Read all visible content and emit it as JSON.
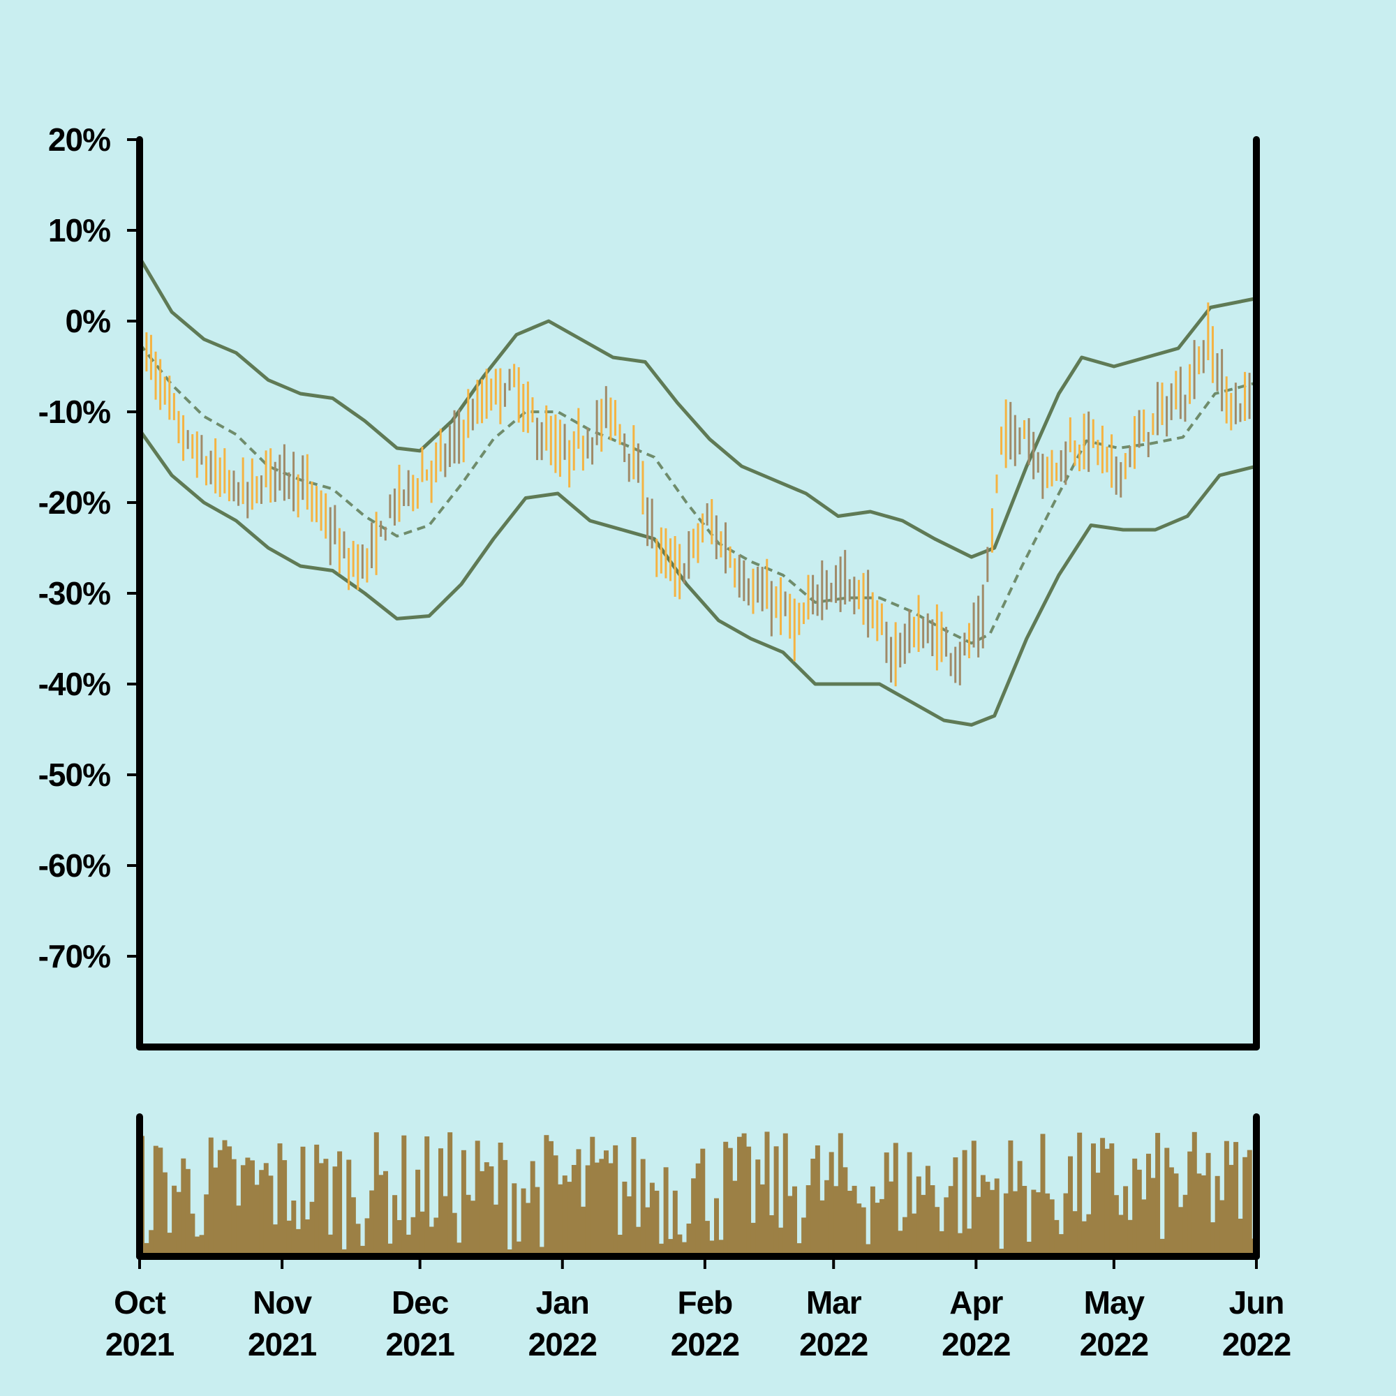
{
  "chart_data": {
    "type": "ohlc",
    "title": "",
    "xlabel": "",
    "ylabel": "",
    "ylim": [
      -80,
      20
    ],
    "y_ticks": [
      20,
      10,
      0,
      -10,
      -20,
      -30,
      -40,
      -50,
      -60,
      -70
    ],
    "y_tick_labels": [
      "20%",
      "10%",
      "0%",
      "-10%",
      "-20%",
      "-30%",
      "-40%",
      "-50%",
      "-60%",
      "-70%"
    ],
    "x_range": [
      "2021-10-01",
      "2022-06-01"
    ],
    "x_ticks": [
      "2021-10-01",
      "2021-11-01",
      "2021-12-01",
      "2022-01-01",
      "2022-02-01",
      "2022-03-01",
      "2022-04-01",
      "2022-05-01",
      "2022-06-01"
    ],
    "x_tick_labels": [
      {
        "month": "Oct",
        "year": "2021"
      },
      {
        "month": "Nov",
        "year": "2021"
      },
      {
        "month": "Dec",
        "year": "2021"
      },
      {
        "month": "Jan",
        "year": "2022"
      },
      {
        "month": "Feb",
        "year": "2022"
      },
      {
        "month": "Mar",
        "year": "2022"
      },
      {
        "month": "Apr",
        "year": "2022"
      },
      {
        "month": "May",
        "year": "2022"
      },
      {
        "month": "Jun",
        "year": "2022"
      }
    ],
    "close_trend": [
      [
        "2021-10-01",
        -2
      ],
      [
        "2021-10-05",
        -7
      ],
      [
        "2021-10-10",
        -13
      ],
      [
        "2021-10-15",
        -16
      ],
      [
        "2021-10-20",
        -18
      ],
      [
        "2021-10-25",
        -19
      ],
      [
        "2021-10-30",
        -16
      ],
      [
        "2021-11-05",
        -18
      ],
      [
        "2021-11-10",
        -22
      ],
      [
        "2021-11-15",
        -27
      ],
      [
        "2021-11-20",
        -26
      ],
      [
        "2021-11-25",
        -20
      ],
      [
        "2021-12-01",
        -17
      ],
      [
        "2021-12-06",
        -15
      ],
      [
        "2021-12-11",
        -11
      ],
      [
        "2021-12-16",
        -8
      ],
      [
        "2021-12-21",
        -7
      ],
      [
        "2021-12-26",
        -12
      ],
      [
        "2022-01-01",
        -15
      ],
      [
        "2022-01-06",
        -13
      ],
      [
        "2022-01-11",
        -10
      ],
      [
        "2022-01-16",
        -15
      ],
      [
        "2022-01-21",
        -25
      ],
      [
        "2022-01-26",
        -28
      ],
      [
        "2022-02-01",
        -22
      ],
      [
        "2022-02-06",
        -26
      ],
      [
        "2022-02-11",
        -30
      ],
      [
        "2022-02-16",
        -31
      ],
      [
        "2022-02-21",
        -34
      ],
      [
        "2022-02-26",
        -29
      ],
      [
        "2022-03-03",
        -29
      ],
      [
        "2022-03-08",
        -31
      ],
      [
        "2022-03-13",
        -37
      ],
      [
        "2022-03-18",
        -34
      ],
      [
        "2022-03-23",
        -35
      ],
      [
        "2022-03-28",
        -37
      ],
      [
        "2022-04-02",
        -33
      ],
      [
        "2022-04-06",
        -13
      ],
      [
        "2022-04-11",
        -12
      ],
      [
        "2022-04-16",
        -17
      ],
      [
        "2022-04-21",
        -14
      ],
      [
        "2022-04-26",
        -13
      ],
      [
        "2022-05-01",
        -17
      ],
      [
        "2022-05-06",
        -13
      ],
      [
        "2022-05-11",
        -10
      ],
      [
        "2022-05-16",
        -8
      ],
      [
        "2022-05-21",
        -2
      ],
      [
        "2022-05-26",
        -10
      ],
      [
        "2022-06-01",
        -8
      ]
    ],
    "moving_average": [
      [
        "2021-10-01",
        -2.5
      ],
      [
        "2021-10-08",
        -7
      ],
      [
        "2021-10-15",
        -10.5
      ],
      [
        "2021-10-22",
        -12.5
      ],
      [
        "2021-10-29",
        -16
      ],
      [
        "2021-11-05",
        -17.5
      ],
      [
        "2021-11-12",
        -18.5
      ],
      [
        "2021-11-19",
        -21.5
      ],
      [
        "2021-11-26",
        -23.7
      ],
      [
        "2021-12-03",
        -22.5
      ],
      [
        "2021-12-10",
        -18
      ],
      [
        "2021-12-17",
        -13
      ],
      [
        "2021-12-24",
        -10
      ],
      [
        "2021-12-31",
        -10
      ],
      [
        "2022-01-07",
        -12
      ],
      [
        "2022-01-14",
        -13.5
      ],
      [
        "2022-01-21",
        -15
      ],
      [
        "2022-01-28",
        -20
      ],
      [
        "2022-02-04",
        -24.5
      ],
      [
        "2022-02-11",
        -26.5
      ],
      [
        "2022-02-18",
        -28
      ],
      [
        "2022-02-25",
        -31
      ],
      [
        "2022-03-04",
        -30.5
      ],
      [
        "2022-03-11",
        -30.5
      ],
      [
        "2022-03-18",
        -32
      ],
      [
        "2022-03-25",
        -34
      ],
      [
        "2022-03-31",
        -35.5
      ],
      [
        "2022-04-04",
        -34.5
      ],
      [
        "2022-04-11",
        -27
      ],
      [
        "2022-04-18",
        -20
      ],
      [
        "2022-04-25",
        -13.2
      ],
      [
        "2022-05-02",
        -14
      ],
      [
        "2022-05-09",
        -13.5
      ],
      [
        "2022-05-16",
        -12.8
      ],
      [
        "2022-05-23",
        -8
      ],
      [
        "2022-06-01",
        -6.8
      ]
    ],
    "upper_band": [
      [
        "2021-10-01",
        7
      ],
      [
        "2021-10-08",
        1
      ],
      [
        "2021-10-15",
        -2
      ],
      [
        "2021-10-22",
        -3.5
      ],
      [
        "2021-10-29",
        -6.5
      ],
      [
        "2021-11-05",
        -8
      ],
      [
        "2021-11-12",
        -8.5
      ],
      [
        "2021-11-19",
        -11
      ],
      [
        "2021-11-26",
        -14
      ],
      [
        "2021-12-01",
        -14.3
      ],
      [
        "2021-12-08",
        -11
      ],
      [
        "2021-12-15",
        -6
      ],
      [
        "2021-12-22",
        -1.5
      ],
      [
        "2021-12-29",
        0
      ],
      [
        "2022-01-05",
        -2
      ],
      [
        "2022-01-12",
        -4
      ],
      [
        "2022-01-19",
        -4.5
      ],
      [
        "2022-01-26",
        -9
      ],
      [
        "2022-02-02",
        -13
      ],
      [
        "2022-02-09",
        -16
      ],
      [
        "2022-02-16",
        -17.5
      ],
      [
        "2022-02-23",
        -19
      ],
      [
        "2022-03-02",
        -21.5
      ],
      [
        "2022-03-09",
        -21
      ],
      [
        "2022-03-16",
        -22
      ],
      [
        "2022-03-23",
        -24
      ],
      [
        "2022-03-31",
        -26
      ],
      [
        "2022-04-05",
        -25
      ],
      [
        "2022-04-12",
        -16
      ],
      [
        "2022-04-19",
        -8
      ],
      [
        "2022-04-24",
        -4
      ],
      [
        "2022-05-01",
        -5
      ],
      [
        "2022-05-08",
        -4
      ],
      [
        "2022-05-15",
        -3
      ],
      [
        "2022-05-22",
        1.5
      ],
      [
        "2022-06-01",
        2.5
      ]
    ],
    "lower_band": [
      [
        "2021-10-01",
        -12
      ],
      [
        "2021-10-08",
        -17
      ],
      [
        "2021-10-15",
        -20
      ],
      [
        "2021-10-22",
        -22
      ],
      [
        "2021-10-29",
        -25
      ],
      [
        "2021-11-05",
        -27
      ],
      [
        "2021-11-12",
        -27.5
      ],
      [
        "2021-11-19",
        -30
      ],
      [
        "2021-11-26",
        -32.8
      ],
      [
        "2021-12-03",
        -32.5
      ],
      [
        "2021-12-10",
        -29
      ],
      [
        "2021-12-17",
        -24
      ],
      [
        "2021-12-24",
        -19.5
      ],
      [
        "2021-12-31",
        -19
      ],
      [
        "2022-01-07",
        -22
      ],
      [
        "2022-01-14",
        -23
      ],
      [
        "2022-01-21",
        -24
      ],
      [
        "2022-01-28",
        -29
      ],
      [
        "2022-02-04",
        -33
      ],
      [
        "2022-02-11",
        -35
      ],
      [
        "2022-02-18",
        -36.5
      ],
      [
        "2022-02-25",
        -40
      ],
      [
        "2022-03-04",
        -40
      ],
      [
        "2022-03-11",
        -40
      ],
      [
        "2022-03-18",
        -42
      ],
      [
        "2022-03-25",
        -44
      ],
      [
        "2022-03-31",
        -44.5
      ],
      [
        "2022-04-05",
        -43.5
      ],
      [
        "2022-04-12",
        -35
      ],
      [
        "2022-04-19",
        -28
      ],
      [
        "2022-04-26",
        -22.5
      ],
      [
        "2022-05-03",
        -23
      ],
      [
        "2022-05-10",
        -23
      ],
      [
        "2022-05-17",
        -21.5
      ],
      [
        "2022-05-24",
        -17
      ],
      [
        "2022-06-01",
        -16
      ]
    ],
    "bar_color_up": "#f5b342",
    "bar_color_down": "#a08a68",
    "band_color": "#5f7a55",
    "ma_color": "#6f8c6b",
    "volume_color": "#9c8045",
    "background": "#c9eef0",
    "legend": "none",
    "grid": false
  }
}
